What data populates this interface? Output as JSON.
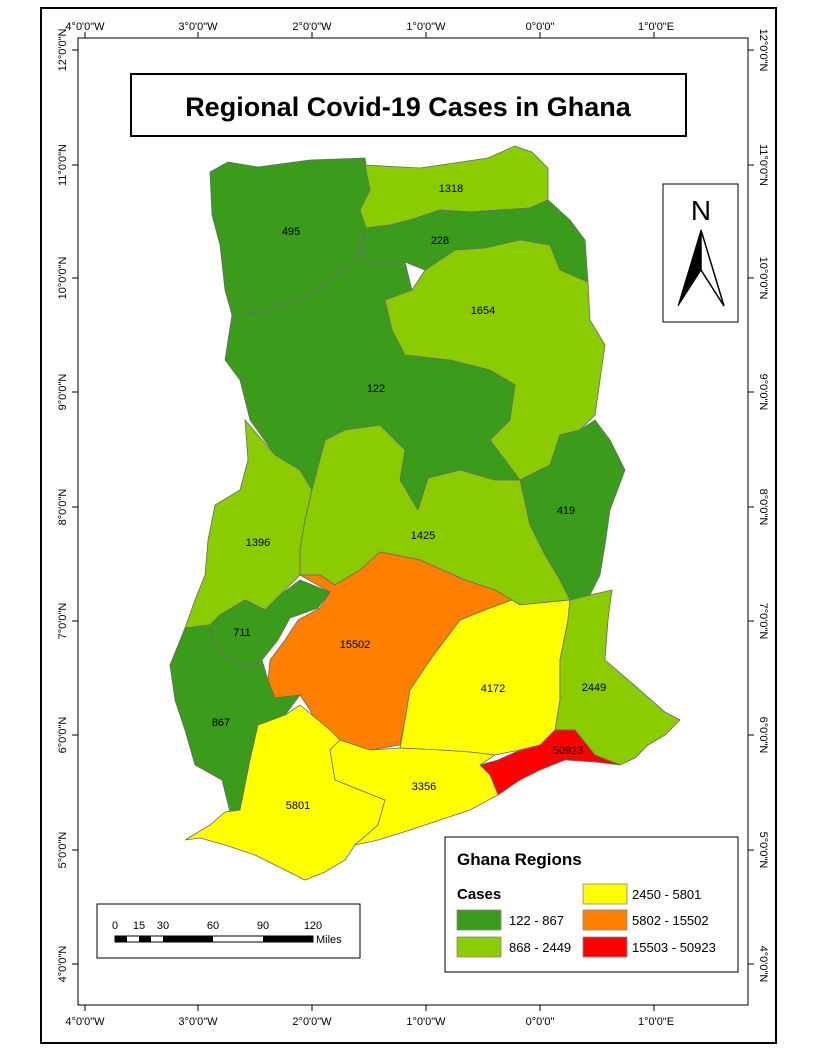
{
  "title": "Regional Covid-19 Cases in Ghana",
  "graticule": {
    "longitudes": [
      "4°0'0\"W",
      "3°0'0\"W",
      "2°0'0\"W",
      "1°0'0\"W",
      "0°0'0\"",
      "1°0'0\"E"
    ],
    "latitudes": [
      "12°0'0\"N",
      "11°0'0\"N",
      "10°0'0\"N",
      "9°0'0\"N",
      "8°0'0\"N",
      "7°0'0\"N",
      "6°0'0\"N",
      "5°0'0\"N",
      "4°0'0\"N"
    ]
  },
  "north_arrow": {
    "label": "N"
  },
  "colors": {
    "class1": "#3a9c1a",
    "class2": "#8bcc00",
    "class3": "#ffff00",
    "class4": "#ff8000",
    "class5": "#ff0000"
  },
  "regions": [
    {
      "cases": "495",
      "class": "class1"
    },
    {
      "cases": "1318",
      "class": "class2"
    },
    {
      "cases": "228",
      "class": "class1"
    },
    {
      "cases": "1654",
      "class": "class2"
    },
    {
      "cases": "122",
      "class": "class1"
    },
    {
      "cases": "419",
      "class": "class1"
    },
    {
      "cases": "1396",
      "class": "class2"
    },
    {
      "cases": "1425",
      "class": "class2"
    },
    {
      "cases": "711",
      "class": "class1"
    },
    {
      "cases": "15502",
      "class": "class4"
    },
    {
      "cases": "4172",
      "class": "class3"
    },
    {
      "cases": "2449",
      "class": "class2"
    },
    {
      "cases": "867",
      "class": "class1"
    },
    {
      "cases": "50923",
      "class": "class5"
    },
    {
      "cases": "5801",
      "class": "class3"
    },
    {
      "cases": "3356",
      "class": "class3"
    }
  ],
  "legend": {
    "title": "Ghana Regions",
    "subtitle": "Cases",
    "items": [
      {
        "label": "122 - 867",
        "color": "#3a9c1a"
      },
      {
        "label": "868 - 2449",
        "color": "#8bcc00"
      },
      {
        "label": "2450 - 5801",
        "color": "#ffff00"
      },
      {
        "label": "5802 - 15502",
        "color": "#ff8000"
      },
      {
        "label": "15503 - 50923",
        "color": "#ff0000"
      }
    ]
  },
  "scale_bar": {
    "ticks": [
      "0",
      "15",
      "30",
      "60",
      "90",
      "120"
    ],
    "unit": "Miles"
  }
}
